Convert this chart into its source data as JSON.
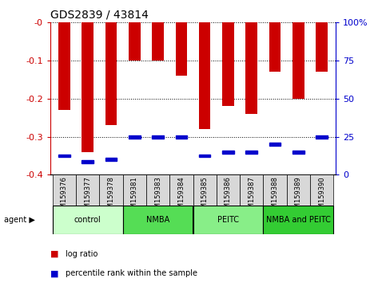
{
  "title": "GDS2839 / 43814",
  "samples": [
    "GSM159376",
    "GSM159377",
    "GSM159378",
    "GSM159381",
    "GSM159383",
    "GSM159384",
    "GSM159385",
    "GSM159386",
    "GSM159387",
    "GSM159388",
    "GSM159389",
    "GSM159390"
  ],
  "log_ratio": [
    -0.23,
    -0.34,
    -0.27,
    -0.1,
    -0.1,
    -0.14,
    -0.28,
    -0.22,
    -0.24,
    -0.13,
    -0.2,
    -0.13
  ],
  "pct_rank_left": [
    -0.35,
    -0.365,
    -0.36,
    -0.3,
    -0.3,
    -0.3,
    -0.35,
    -0.34,
    -0.34,
    -0.32,
    -0.34,
    -0.3
  ],
  "ylim_left": [
    -0.4,
    0
  ],
  "ylim_right": [
    0,
    100
  ],
  "yticks_left": [
    0,
    -0.1,
    -0.2,
    -0.3,
    -0.4
  ],
  "ytick_labels_left": [
    "-0",
    "-0.1",
    "-0.2",
    "-0.3",
    "-0.4"
  ],
  "yticks_right": [
    0,
    25,
    50,
    75,
    100
  ],
  "ytick_labels_right": [
    "0",
    "25",
    "50",
    "75",
    "100%"
  ],
  "groups": [
    {
      "label": "control",
      "indices": [
        0,
        1,
        2
      ],
      "color": "#ccffcc"
    },
    {
      "label": "NMBA",
      "indices": [
        3,
        4,
        5
      ],
      "color": "#55dd55"
    },
    {
      "label": "PEITC",
      "indices": [
        6,
        7,
        8
      ],
      "color": "#88ee88"
    },
    {
      "label": "NMBA and PEITC",
      "indices": [
        9,
        10,
        11
      ],
      "color": "#33cc33"
    }
  ],
  "bar_color": "#cc0000",
  "marker_color": "#0000cc",
  "bar_width": 0.5,
  "legend_log_ratio": "log ratio",
  "legend_pct": "percentile rank within the sample"
}
